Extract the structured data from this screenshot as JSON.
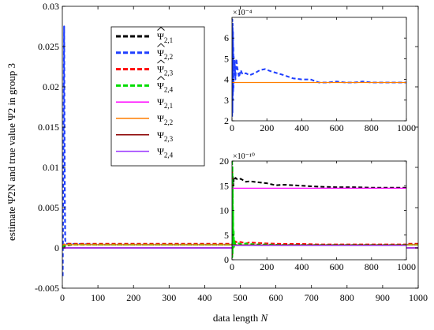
{
  "chart_data": [
    {
      "type": "line",
      "role": "main",
      "xlabel": "data length N",
      "ylabel": "estimate Ψ̂2N and true value Ψ2 in group 3",
      "xlim": [
        0,
        1000
      ],
      "ylim": [
        -0.005,
        0.03
      ],
      "xticks": [
        0,
        100,
        200,
        300,
        400,
        500,
        600,
        700,
        800,
        900,
        1000
      ],
      "yticks": [
        -0.005,
        0,
        0.005,
        0.01,
        0.015,
        0.02,
        0.025,
        0.03
      ],
      "ytick_labels": [
        "-0.005",
        "0",
        "0.005",
        "0.01",
        "0.015",
        "0.02",
        "0.025",
        "0.03"
      ],
      "grid": false,
      "legend_position": "top-left",
      "series": [
        {
          "legend": "Ψ̂2,1",
          "symbol": "Ψ",
          "hat": true,
          "sub": "2,1",
          "color": "#000000",
          "dash": "dashed",
          "x": [
            1,
            3,
            6,
            10,
            30,
            100,
            1000
          ],
          "y": [
            0.0,
            0.0,
            0.0002,
            0.0003,
            0.0004,
            0.0004,
            0.0004
          ]
        },
        {
          "legend": "Ψ̂2,2",
          "symbol": "Ψ",
          "hat": true,
          "sub": "2,2",
          "color": "#1f3fff",
          "dash": "dashed",
          "x": [
            1,
            2,
            3,
            4,
            5,
            6,
            7,
            8,
            9,
            10,
            20,
            100,
            1000
          ],
          "y": [
            -0.0035,
            0.004,
            0.012,
            0.02,
            0.0275,
            0.015,
            0.006,
            0.001,
            0.0007,
            0.0005,
            0.0005,
            0.0004,
            0.0004
          ]
        },
        {
          "legend": "Ψ̂2,3",
          "symbol": "Ψ",
          "hat": true,
          "sub": "2,3",
          "color": "#ff0000",
          "dash": "dashed",
          "x": [
            1,
            5,
            10,
            50,
            1000
          ],
          "y": [
            0.0001,
            0.0004,
            0.0005,
            0.0005,
            0.0005
          ]
        },
        {
          "legend": "Ψ̂2,4",
          "symbol": "Ψ",
          "hat": true,
          "sub": "2,4",
          "color": "#00dd00",
          "dash": "dashed",
          "x": [
            1,
            5,
            10,
            50,
            1000
          ],
          "y": [
            0.0,
            0.0003,
            0.0004,
            0.0004,
            0.0004
          ]
        },
        {
          "legend": "Ψ2,1",
          "symbol": "Ψ",
          "hat": false,
          "sub": "2,1",
          "color": "#ff00ff",
          "dash": "solid",
          "x": [
            0,
            1000
          ],
          "y": [
            0.0,
            0.0
          ]
        },
        {
          "legend": "Ψ2,2",
          "symbol": "Ψ",
          "hat": false,
          "sub": "2,2",
          "color": "#ff7f00",
          "dash": "solid",
          "x": [
            0,
            1000
          ],
          "y": [
            0.0004,
            0.0004
          ]
        },
        {
          "legend": "Ψ2,3",
          "symbol": "Ψ",
          "hat": false,
          "sub": "2,3",
          "color": "#8b0000",
          "dash": "solid",
          "x": [
            0,
            1000
          ],
          "y": [
            0.0,
            0.0
          ]
        },
        {
          "legend": "Ψ2,4",
          "symbol": "Ψ",
          "hat": false,
          "sub": "2,4",
          "color": "#9933ff",
          "dash": "solid",
          "x": [
            0,
            1000
          ],
          "y": [
            0.0,
            0.0
          ]
        }
      ]
    },
    {
      "type": "line",
      "role": "inset-top",
      "xlim": [
        0,
        1000
      ],
      "ylim": [
        2,
        7
      ],
      "exponent_label": "×10⁻⁴",
      "xticks": [
        0,
        200,
        400,
        600,
        800,
        1000
      ],
      "yticks": [
        2,
        3,
        4,
        5,
        6
      ],
      "series": [
        {
          "ref": "Ψ̂2,2",
          "color": "#1f3fff",
          "dash": "dashed",
          "x": [
            1,
            2,
            3,
            4,
            5,
            6,
            7,
            8,
            9,
            10,
            12,
            15,
            20,
            25,
            30,
            40,
            50,
            60,
            80,
            100,
            130,
            160,
            190,
            220,
            260,
            300,
            350,
            400,
            450,
            500,
            550,
            600,
            650,
            700,
            750,
            800,
            850,
            900,
            950,
            1000
          ],
          "y": [
            2.2,
            6.9,
            2.4,
            6.7,
            3.0,
            6.3,
            3.4,
            5.6,
            3.6,
            5.1,
            4.2,
            4.9,
            4.0,
            5.0,
            4.6,
            4.1,
            4.45,
            4.25,
            4.3,
            4.2,
            4.3,
            4.45,
            4.5,
            4.4,
            4.3,
            4.2,
            4.05,
            4.0,
            4.0,
            3.85,
            3.85,
            3.9,
            3.85,
            3.85,
            3.9,
            3.85,
            3.85,
            3.85,
            3.85,
            3.85
          ]
        },
        {
          "ref": "Ψ2,2",
          "color": "#ff7f00",
          "dash": "solid",
          "x": [
            0,
            1000
          ],
          "y": [
            3.85,
            3.85
          ]
        }
      ]
    },
    {
      "type": "line",
      "role": "inset-bottom",
      "xlim": [
        0,
        1000
      ],
      "ylim": [
        0,
        20
      ],
      "exponent_label": "×10⁻¹⁰",
      "xticks": [
        0,
        200,
        400,
        600,
        800,
        1000
      ],
      "yticks": [
        0,
        5,
        10,
        15,
        20
      ],
      "series": [
        {
          "ref": "Ψ̂2,1",
          "color": "#000000",
          "dash": "dashed",
          "x": [
            1,
            2,
            3,
            5,
            8,
            10,
            15,
            20,
            30,
            50,
            80,
            100,
            150,
            200,
            250,
            300,
            400,
            500,
            600,
            700,
            800,
            900,
            1000
          ],
          "y": [
            0.5,
            3,
            12,
            17,
            15,
            16.5,
            16.2,
            16.6,
            16.3,
            16.4,
            15.8,
            15.9,
            15.7,
            15.5,
            15.1,
            15.2,
            15.0,
            14.8,
            14.7,
            14.7,
            14.6,
            14.6,
            14.6
          ]
        },
        {
          "ref": "Ψ̂2,3",
          "color": "#ff0000",
          "dash": "dashed",
          "x": [
            1,
            2,
            3,
            5,
            8,
            10,
            15,
            20,
            30,
            50,
            80,
            100,
            150,
            200,
            300,
            400,
            500,
            600,
            700,
            800,
            900,
            1000
          ],
          "y": [
            1,
            18,
            3,
            6,
            2.5,
            4.0,
            3.2,
            3.7,
            3.5,
            3.6,
            3.3,
            3.5,
            3.4,
            3.3,
            3.2,
            3.2,
            3.1,
            3.1,
            3.1,
            3.1,
            3.1,
            3.1
          ]
        },
        {
          "ref": "Ψ̂2,4",
          "color": "#00dd00",
          "dash": "dashed",
          "x": [
            1,
            2,
            3,
            4,
            5,
            6,
            7,
            8,
            10,
            12,
            15,
            20,
            30,
            50,
            80,
            100,
            150,
            200,
            300,
            400,
            500,
            600,
            700,
            800,
            900,
            1000
          ],
          "y": [
            20,
            0.5,
            19,
            1,
            15,
            2,
            10,
            3,
            6,
            2.6,
            4,
            3.0,
            3.4,
            3.2,
            3.3,
            3.2,
            3.1,
            3.1,
            3.0,
            3.0,
            3.0,
            3.0,
            3.0,
            3.0,
            3.0,
            3.0
          ]
        },
        {
          "ref": "Ψ2,1",
          "color": "#ff00ff",
          "dash": "solid",
          "x": [
            0,
            1000
          ],
          "y": [
            14.5,
            14.5
          ]
        },
        {
          "ref": "Ψ2,3",
          "color": "#8b0000",
          "dash": "solid",
          "x": [
            0,
            1000
          ],
          "y": [
            3.0,
            3.0
          ]
        },
        {
          "ref": "Ψ2,4",
          "color": "#9933ff",
          "dash": "solid",
          "x": [
            0,
            1000
          ],
          "y": [
            2.9,
            2.9
          ]
        }
      ]
    }
  ]
}
